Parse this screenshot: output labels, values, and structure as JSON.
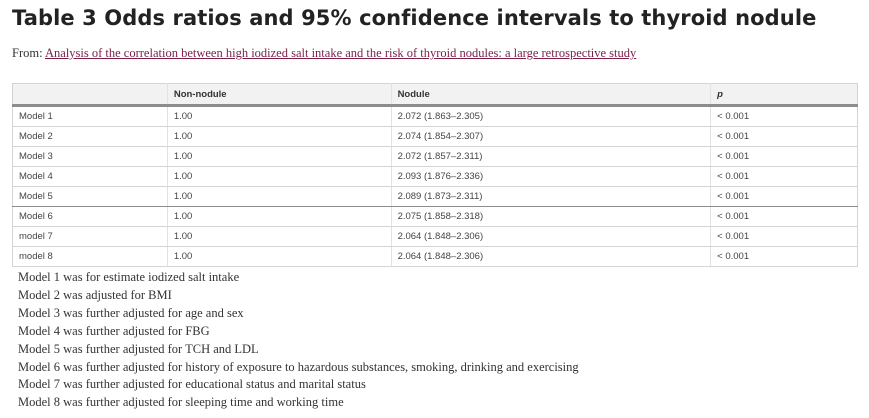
{
  "title": "Table 3 Odds ratios and 95% confidence intervals to thyroid nodule",
  "source": {
    "prefix": "From:",
    "link_text": "Analysis of the correlation between high iodized salt intake and the risk of thyroid nodules: a large retrospective study"
  },
  "table": {
    "headers": [
      "",
      "Non-nodule",
      "Nodule",
      "p"
    ],
    "rows": [
      [
        "Model 1",
        "1.00",
        "2.072 (1.863–2.305)",
        "< 0.001"
      ],
      [
        "Model 2",
        "1.00",
        "2.074 (1.854–2.307)",
        "< 0.001"
      ],
      [
        "Model 3",
        "1.00",
        "2.072 (1.857–2.311)",
        "< 0.001"
      ],
      [
        "Model 4",
        "1.00",
        "2.093 (1.876–2.336)",
        "< 0.001"
      ],
      [
        "Model 5",
        "1.00",
        "2.089 (1.873–2.311)",
        "< 0.001"
      ],
      [
        "Model 6",
        "1.00",
        "2.075 (1.858–2.318)",
        "< 0.001"
      ],
      [
        "model 7",
        "1.00",
        "2.064 (1.848–2.306)",
        "< 0.001"
      ],
      [
        "model 8",
        "1.00",
        "2.064 (1.848–2.306)",
        "< 0.001"
      ]
    ]
  },
  "footnotes": [
    "Model 1 was for estimate iodized salt intake",
    "Model 2 was adjusted for BMI",
    "Model 3 was further adjusted for age and sex",
    "Model 4 was further adjusted for FBG",
    "Model 5 was further adjusted for TCH and LDL",
    "Model 6 was further adjusted for history of exposure to hazardous substances, smoking, drinking and exercising",
    "Model 7 was further adjusted for educational status and marital status",
    "Model 8 was further adjusted for sleeping time and working time"
  ]
}
